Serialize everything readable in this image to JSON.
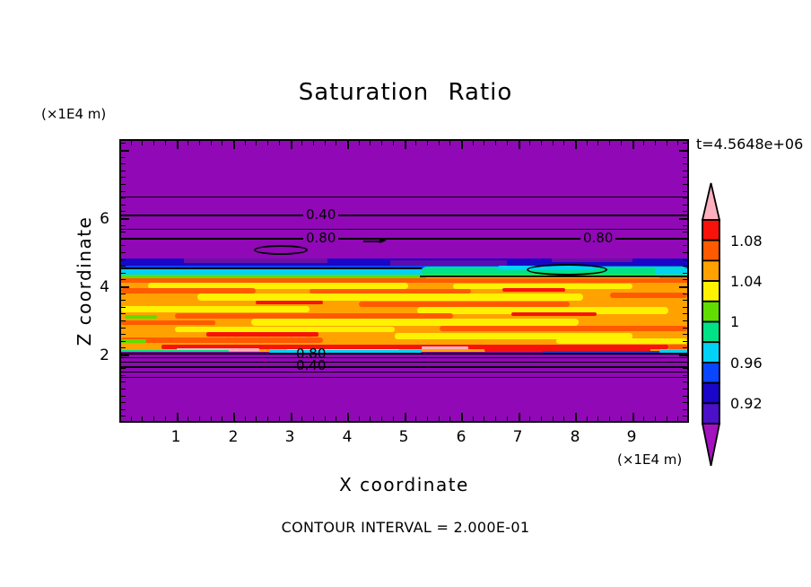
{
  "title": "Saturation Ratio",
  "time_label": "t=4.5648e+06",
  "contour_note": "CONTOUR INTERVAL = 2.000E-01",
  "plot_bg": "#9108B6",
  "axes": {
    "x_label": "X coordinate",
    "y_label": "Z coordinate",
    "x_unit": "(×1E4 m)",
    "y_unit": "(×1E4 m)",
    "x_tick_labels": [
      "1",
      "2",
      "3",
      "4",
      "5",
      "6",
      "7",
      "8",
      "9"
    ],
    "y_tick_labels": [
      "2",
      "4",
      "6"
    ]
  },
  "contour_labels": {
    "upper": [
      "0.40",
      "0.80",
      "0.80"
    ],
    "lower": [
      "0.80",
      "0.40"
    ]
  },
  "colorbar": {
    "labels": [
      "1.08",
      "1.04",
      "1",
      "0.96",
      "0.92"
    ],
    "colors": [
      "#F81209",
      "#FF5A00",
      "#FFA200",
      "#FFF200",
      "#5FDE00",
      "#00E287",
      "#00D2F8",
      "#0946FF",
      "#1A06C8",
      "#4B10C8"
    ],
    "arrow_top_color": "#FFB0BE",
    "arrow_bottom_color": "#A312BE",
    "outline_color": "#000000"
  },
  "chart_data": {
    "type": "heatmap",
    "subtype": "filled-contour",
    "title": "Saturation Ratio",
    "xlabel": "X coordinate (×1E4 m)",
    "ylabel": "Z coordinate (×1E4 m)",
    "x_range": [
      0,
      10
    ],
    "z_range": [
      0,
      8.3
    ],
    "x_ticks": [
      1,
      2,
      3,
      4,
      5,
      6,
      7,
      8,
      9
    ],
    "z_ticks": [
      2,
      4,
      6
    ],
    "time_annotation": "t=4.5648e+06",
    "contour_interval": 0.2,
    "colorbar_ticks": [
      1.08,
      1.04,
      1,
      0.96,
      0.92
    ],
    "colorbar_level_step": 0.02,
    "colorbar_range": [
      0.9,
      1.1
    ],
    "colorbar_arrows": {
      "above": ">1.10 (pink)",
      "below": "<0.90 (purple)"
    },
    "line_contour_labels_visible": [
      0.4,
      0.8,
      0.8,
      0.8,
      0.4
    ],
    "field_zones": [
      {
        "zone": "upper purple zone",
        "z": [
          4.8,
          8.3
        ],
        "value": "saturation ratio < 0.9; line contours 0.2, 0.4, 0.6, 0.8 at z ≈ 6.6, 6.1, 5.7, 5.4"
      },
      {
        "zone": "upper transition band",
        "z": [
          4.3,
          4.8
        ],
        "value": "0.90–1.02: navy, blue, cyan, spring-green (with closed 1.0 contour near x=7.2–8.4), green"
      },
      {
        "zone": "middle saturated band",
        "z": [
          2.1,
          4.3
        ],
        "value": "1.02–1.10 heterogeneous horizontal streaks of yellow, orange, orange-red, red; pink flecks > 1.10 near base"
      },
      {
        "zone": "lower purple zone",
        "z": [
          0,
          2.1
        ],
        "value": "saturation ratio < 0.9; line contours 0.8, 0.6, 0.4, 0.2 at z ≈ 2.05, 1.95, 1.75, 1.35 with overlapping 0.80/0.40 labels"
      }
    ],
    "grid": false,
    "legend_position": "right colorbar"
  }
}
